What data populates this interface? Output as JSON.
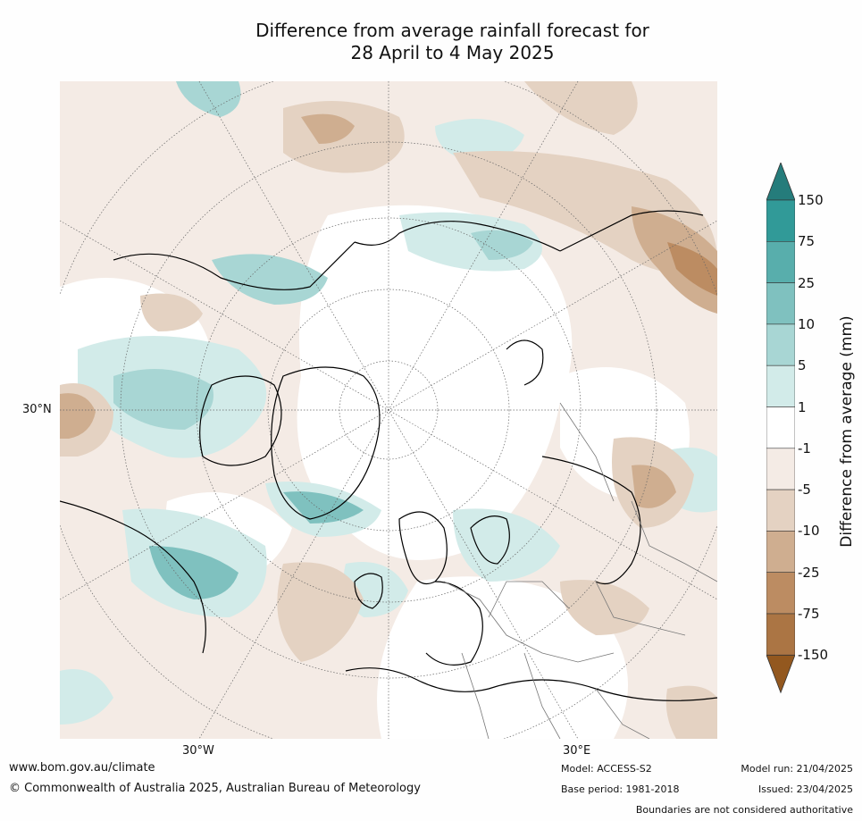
{
  "title_line1": "Difference from average rainfall forecast for",
  "title_line2": "28 April to 4 May 2025",
  "map": {
    "label_30N": "30°N",
    "label_30W": "30°W",
    "label_30E": "30°E"
  },
  "colorbar": {
    "title": "Difference from average (mm)",
    "ticks": [
      "150",
      "75",
      "25",
      "10",
      "5",
      "1",
      "-1",
      "-5",
      "-10",
      "-25",
      "-75",
      "-150"
    ],
    "colors": [
      "#257c7b",
      "#319a98",
      "#58aeac",
      "#7fc1bf",
      "#a8d6d4",
      "#d2ebe9",
      "#ffffff",
      "#f4ebe5",
      "#e4d2c2",
      "#cfae90",
      "#bc8c62",
      "#ab7544",
      "#93581f"
    ]
  },
  "footer": {
    "url": "www.bom.gov.au/climate",
    "copyright": "© Commonwealth of Australia 2025, Australian Bureau of Meteorology",
    "model": "Model: ACCESS-S2",
    "base_period": "Base period: 1981-2018",
    "model_run": "Model run: 21/04/2025",
    "issued": "Issued: 23/04/2025",
    "disclaimer": "Boundaries are not considered authoritative"
  }
}
